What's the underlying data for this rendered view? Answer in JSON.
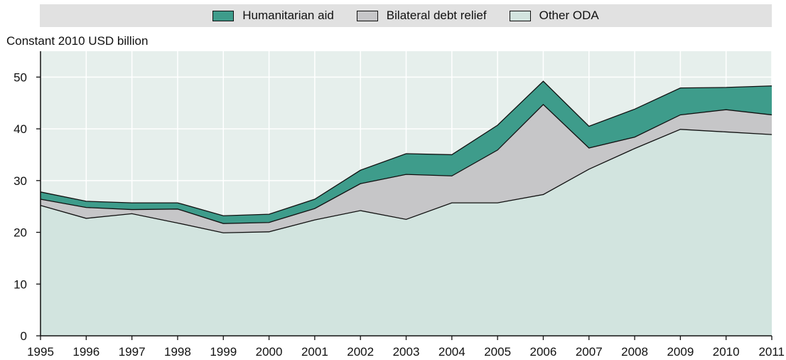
{
  "chart_data": {
    "type": "area",
    "stacked": true,
    "title": "",
    "xlabel": "",
    "ylabel": "Constant 2010 USD billion",
    "ylim": [
      0,
      55
    ],
    "yticks": [
      "0",
      "10",
      "20",
      "30",
      "40",
      "50"
    ],
    "grid": true,
    "legend_position": "top",
    "categories": [
      "1995",
      "1996",
      "1997",
      "1998",
      "1999",
      "2000",
      "2001",
      "2002",
      "2003",
      "2004",
      "2005",
      "2006",
      "2007",
      "2008",
      "2009",
      "2010",
      "2011"
    ],
    "series": [
      {
        "name": "Other ODA",
        "color": "#d2e4df",
        "values": [
          25.2,
          22.7,
          23.6,
          21.8,
          19.9,
          20.1,
          22.4,
          24.2,
          22.5,
          25.7,
          25.7,
          27.3,
          32.2,
          36.2,
          39.9,
          39.4,
          38.9
        ]
      },
      {
        "name": "Bilateral debt relief",
        "color": "#c6c6c8",
        "values": [
          1.2,
          2.1,
          0.8,
          2.7,
          1.8,
          1.8,
          2.2,
          5.2,
          8.7,
          5.2,
          10.2,
          17.4,
          4.1,
          2.2,
          2.8,
          4.3,
          3.8
        ]
      },
      {
        "name": "Humanitarian aid",
        "color": "#3e9c8b",
        "values": [
          1.4,
          1.2,
          1.3,
          1.2,
          1.5,
          1.6,
          1.8,
          2.6,
          4.0,
          4.1,
          4.8,
          4.5,
          4.2,
          5.4,
          5.2,
          4.3,
          5.6
        ]
      }
    ]
  },
  "legend": {
    "items": [
      {
        "label": "Humanitarian aid",
        "color": "#3e9c8b"
      },
      {
        "label": "Bilateral debt relief",
        "color": "#c6c6c8"
      },
      {
        "label": "Other ODA",
        "color": "#d2e4df"
      }
    ]
  }
}
